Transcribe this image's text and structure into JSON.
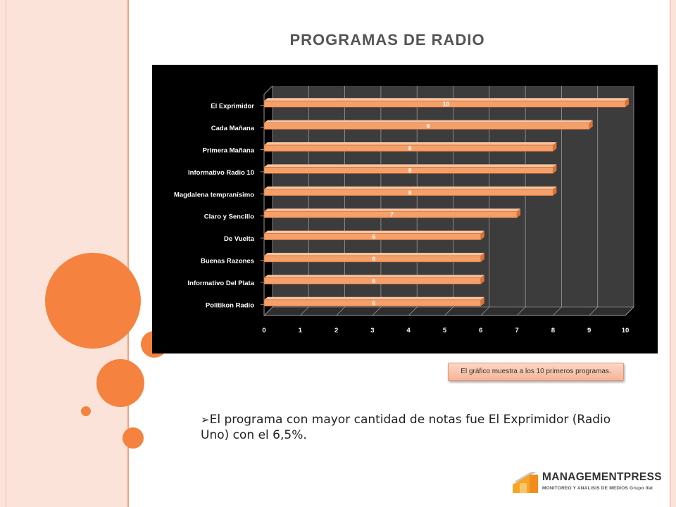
{
  "slide": {
    "title": "PROGRAMAS DE RADIO",
    "note": "El gráfico muestra a los 10 primeros programas.",
    "bullet_arrow": "➢",
    "bullet": "El programa con mayor cantidad de notas fue El Exprimidor (Radio Uno) con el 6,5%."
  },
  "logo": {
    "name": "MANAGEMENTPRESS",
    "tagline": "MONITOREO Y ANALISIS DE MEDIOS Grupo Ifat"
  },
  "colors": {
    "accent": "#f5823e",
    "bar": "#f4a06a",
    "chart_bg": "#000000",
    "plot_bg": "#3c3c3c"
  },
  "chart_data": {
    "type": "bar",
    "orientation": "horizontal",
    "categories": [
      "El Exprimidor",
      "Cada Mañana",
      "Primera Mañana",
      "Informativo Radio 10",
      "Magdalena tempranísimo",
      "Claro y Sencillo",
      "De Vuelta",
      "Buenas Razones",
      "Informativo Del Plata",
      "Politikon Radio"
    ],
    "values": [
      10,
      9,
      8,
      8,
      8,
      7,
      6,
      6,
      6,
      6
    ],
    "x_ticks": [
      "0",
      "1",
      "2",
      "3",
      "4",
      "5",
      "6",
      "7",
      "8",
      "9",
      "10"
    ],
    "xlim": [
      0,
      10
    ],
    "grid": true,
    "legend": "none",
    "data_labels": true
  }
}
